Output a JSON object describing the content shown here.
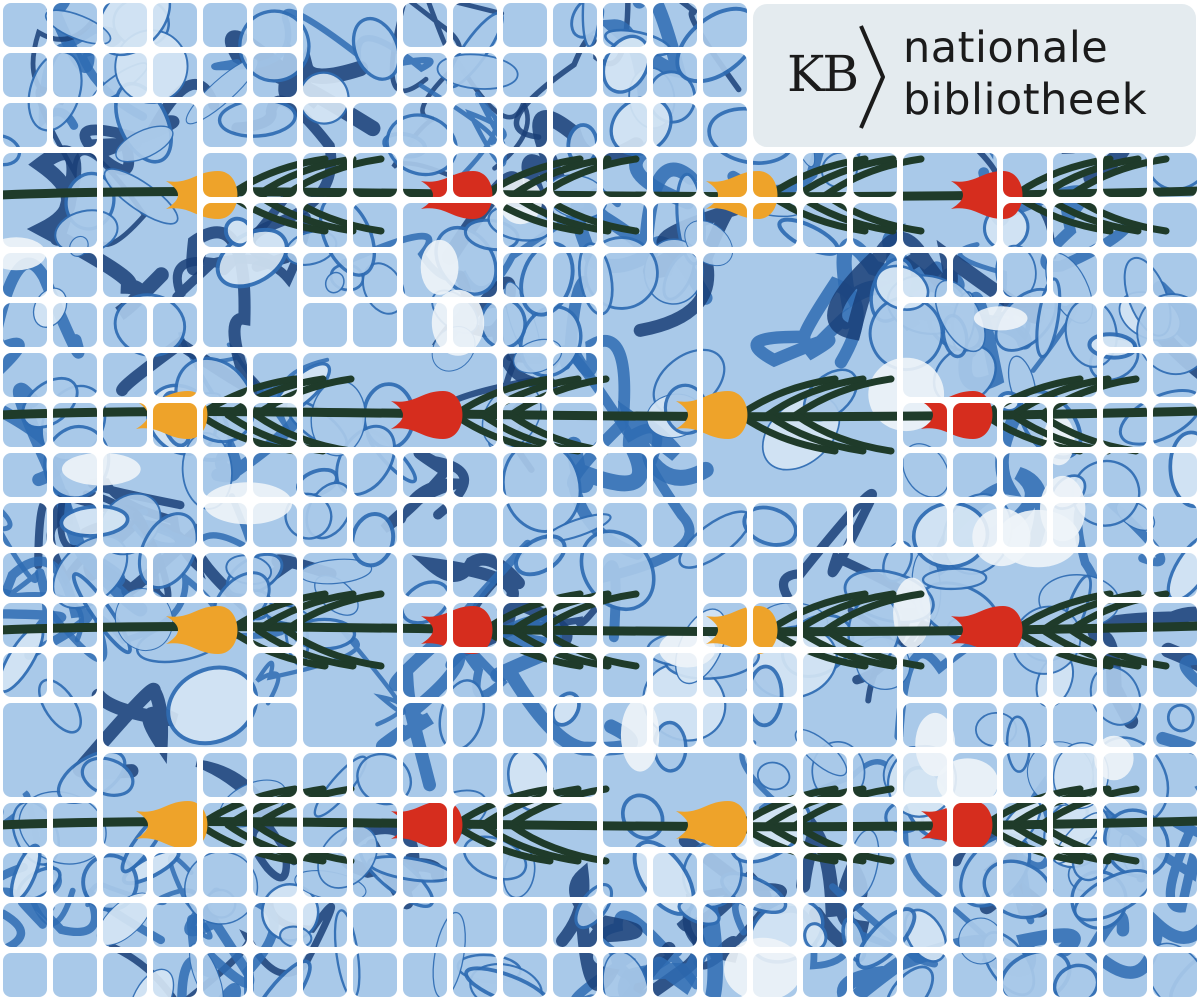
{
  "logo": {
    "mark": "KB",
    "name_line1": "nationale",
    "name_line2": "bibliotheek"
  },
  "colors": {
    "grout": "#ffffff",
    "paper_light": "#a9c9e9",
    "paper_pale": "#d4e5f4",
    "vein_blue": "#2f6cb3",
    "vein_dark": "#1a3f78",
    "stem_green": "#1f3b2a",
    "tulip_orange": "#eea32a",
    "tulip_red": "#d62d1e",
    "logo_panel": "#e4ebef",
    "logo_text": "#1b1b1b"
  },
  "artwork": {
    "description_icon": "marbled-paper-mosaic",
    "tulips": [
      {
        "color": "orange"
      },
      {
        "color": "red"
      },
      {
        "color": "orange"
      },
      {
        "color": "red"
      },
      {
        "color": "orange"
      },
      {
        "color": "red"
      },
      {
        "color": "orange"
      },
      {
        "color": "red"
      },
      {
        "color": "orange"
      },
      {
        "color": "red"
      },
      {
        "color": "orange"
      },
      {
        "color": "red"
      },
      {
        "color": "orange"
      },
      {
        "color": "red"
      },
      {
        "color": "orange"
      },
      {
        "color": "red"
      }
    ]
  }
}
